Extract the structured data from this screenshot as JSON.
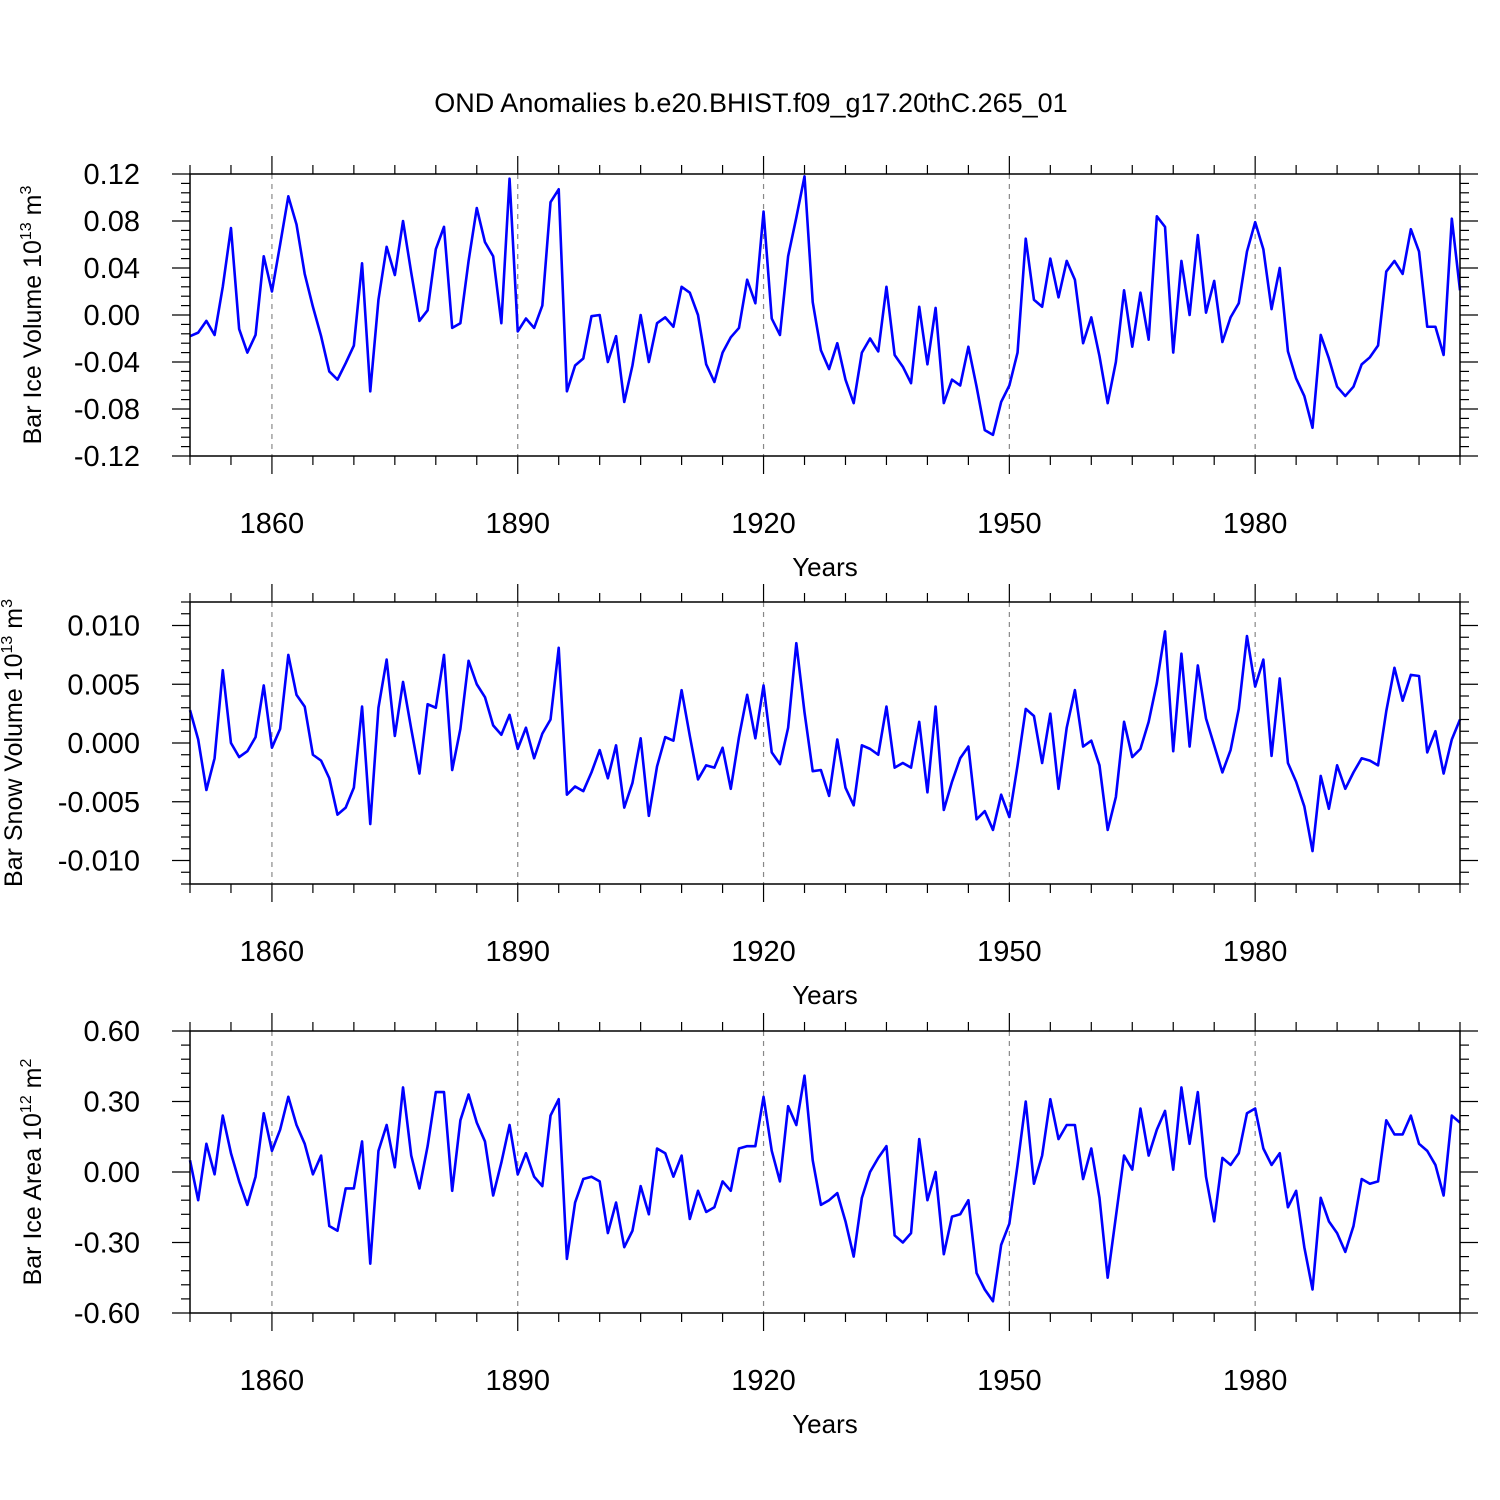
{
  "title": "OND Anomalies b.e20.BHIST.f09_g17.20thC.265_01",
  "series_color": "#0000ff",
  "chart_data": [
    {
      "type": "line",
      "ylabel_main": "Bar Ice Volume 10",
      "ylabel_exp": "13",
      "ylabel_unit": " m",
      "ylabel_unit_exp": "3",
      "xlabel": "Years",
      "xlim": [
        1850,
        2005
      ],
      "ylim": [
        -0.12,
        0.12
      ],
      "yticks": [
        -0.12,
        -0.08,
        -0.04,
        0.0,
        0.04,
        0.08,
        0.12
      ],
      "ytick_labels": [
        "-0.12",
        "-0.08",
        "-0.04",
        "0.00",
        "0.04",
        "0.08",
        "0.12"
      ],
      "xticks": [
        1860,
        1890,
        1920,
        1950,
        1980
      ],
      "xtick_labels": [
        "1860",
        "1890",
        "1920",
        "1950",
        "1980"
      ],
      "x_start": 1850,
      "values": [
        -0.018,
        -0.015,
        -0.005,
        -0.017,
        0.024,
        0.074,
        -0.012,
        -0.032,
        -0.017,
        0.05,
        0.02,
        0.06,
        0.101,
        0.077,
        0.035,
        0.007,
        -0.018,
        -0.048,
        -0.055,
        -0.041,
        -0.026,
        0.044,
        -0.065,
        0.013,
        0.058,
        0.034,
        0.08,
        0.036,
        -0.005,
        0.004,
        0.056,
        0.075,
        -0.011,
        -0.007,
        0.046,
        0.091,
        0.062,
        0.05,
        -0.007,
        0.116,
        -0.014,
        -0.003,
        -0.011,
        0.008,
        0.096,
        0.107,
        -0.065,
        -0.043,
        -0.037,
        -0.001,
        0.0,
        -0.04,
        -0.018,
        -0.074,
        -0.043,
        0.0,
        -0.04,
        -0.007,
        -0.002,
        -0.01,
        0.024,
        0.019,
        0.0,
        -0.042,
        -0.057,
        -0.032,
        -0.019,
        -0.011,
        0.03,
        0.01,
        0.088,
        -0.003,
        -0.017,
        0.05,
        0.083,
        0.118,
        0.011,
        -0.03,
        -0.046,
        -0.024,
        -0.055,
        -0.075,
        -0.032,
        -0.02,
        -0.031,
        0.024,
        -0.034,
        -0.044,
        -0.058,
        0.007,
        -0.042,
        0.006,
        -0.075,
        -0.055,
        -0.06,
        -0.027,
        -0.061,
        -0.098,
        -0.102,
        -0.074,
        -0.06,
        -0.032,
        0.065,
        0.013,
        0.007,
        0.048,
        0.015,
        0.046,
        0.03,
        -0.024,
        -0.002,
        -0.035,
        -0.075,
        -0.04,
        0.021,
        -0.027,
        0.019,
        -0.021,
        0.084,
        0.075,
        -0.032,
        0.046,
        0.0,
        0.068,
        0.002,
        0.029,
        -0.023,
        -0.002,
        0.01,
        0.054,
        0.079,
        0.056,
        0.005,
        0.04,
        -0.031,
        -0.054,
        -0.069,
        -0.096,
        -0.017,
        -0.037,
        -0.061,
        -0.069,
        -0.061,
        -0.042,
        -0.036,
        -0.026,
        0.037,
        0.046,
        0.035,
        0.073,
        0.054,
        -0.01,
        -0.01,
        -0.034,
        0.082,
        0.021
      ]
    },
    {
      "type": "line",
      "ylabel_main": "Bar Snow Volume 10",
      "ylabel_exp": "13",
      "ylabel_unit": " m",
      "ylabel_unit_exp": "3",
      "xlabel": "Years",
      "xlim": [
        1850,
        2005
      ],
      "ylim": [
        -0.012,
        0.012
      ],
      "yticks": [
        -0.01,
        -0.005,
        0.0,
        0.005,
        0.01
      ],
      "ytick_labels": [
        "-0.010",
        "-0.005",
        "0.000",
        "0.005",
        "0.010"
      ],
      "xticks": [
        1860,
        1890,
        1920,
        1950,
        1980
      ],
      "xtick_labels": [
        "1860",
        "1890",
        "1920",
        "1950",
        "1980"
      ],
      "x_start": 1850,
      "values": [
        0.0028,
        0.0003,
        -0.004,
        -0.0013,
        0.0062,
        0.0,
        -0.0012,
        -0.0007,
        0.0005,
        0.0049,
        -0.0004,
        0.0012,
        0.0075,
        0.0041,
        0.0031,
        -0.001,
        -0.0015,
        -0.003,
        -0.0061,
        -0.0055,
        -0.0038,
        0.0031,
        -0.0069,
        0.003,
        0.0071,
        0.0006,
        0.0052,
        0.0012,
        -0.0026,
        0.0033,
        0.003,
        0.0075,
        -0.0023,
        0.0012,
        0.007,
        0.005,
        0.0039,
        0.0015,
        0.0007,
        0.0024,
        -0.0005,
        0.0013,
        -0.0013,
        0.0008,
        0.002,
        0.0081,
        -0.0044,
        -0.0037,
        -0.0041,
        -0.0025,
        -0.0006,
        -0.003,
        -0.0002,
        -0.0055,
        -0.0034,
        0.0004,
        -0.0062,
        -0.002,
        0.0005,
        0.0002,
        0.0045,
        0.0006,
        -0.0031,
        -0.0019,
        -0.0021,
        -0.0004,
        -0.0039,
        0.0005,
        0.0041,
        0.0004,
        0.0049,
        -0.0008,
        -0.0018,
        0.0013,
        0.0085,
        0.0026,
        -0.0024,
        -0.0023,
        -0.0045,
        0.0003,
        -0.0038,
        -0.0053,
        -0.0002,
        -0.0005,
        -0.001,
        0.0031,
        -0.0021,
        -0.0017,
        -0.0021,
        0.0018,
        -0.0042,
        0.0031,
        -0.0057,
        -0.0033,
        -0.0013,
        -0.0003,
        -0.0065,
        -0.0058,
        -0.0074,
        -0.0044,
        -0.0063,
        -0.0019,
        0.0029,
        0.0023,
        -0.0017,
        0.0025,
        -0.0039,
        0.0013,
        0.0045,
        -0.0003,
        0.0002,
        -0.0019,
        -0.0074,
        -0.0046,
        0.0018,
        -0.0012,
        -0.0005,
        0.0018,
        0.0051,
        0.0095,
        -0.0007,
        0.0076,
        -0.0003,
        0.0066,
        0.0021,
        -0.0002,
        -0.0025,
        -0.0006,
        0.0029,
        0.0091,
        0.0048,
        0.0071,
        -0.0011,
        0.0055,
        -0.0017,
        -0.0033,
        -0.0054,
        -0.0092,
        -0.0028,
        -0.0056,
        -0.0019,
        -0.0039,
        -0.0025,
        -0.0013,
        -0.0015,
        -0.0019,
        0.0027,
        0.0064,
        0.0036,
        0.0058,
        0.0057,
        -0.0008,
        0.001,
        -0.0026,
        0.0003,
        0.002
      ]
    },
    {
      "type": "line",
      "ylabel_main": "Bar Ice Area 10",
      "ylabel_exp": "12",
      "ylabel_unit": " m",
      "ylabel_unit_exp": "2",
      "xlabel": "Years",
      "xlim": [
        1850,
        2005
      ],
      "ylim": [
        -0.6,
        0.6
      ],
      "yticks": [
        -0.6,
        -0.3,
        0.0,
        0.3,
        0.6
      ],
      "ytick_labels": [
        "-0.60",
        "-0.30",
        "0.00",
        "0.30",
        "0.60"
      ],
      "xticks": [
        1860,
        1890,
        1920,
        1950,
        1980
      ],
      "xtick_labels": [
        "1860",
        "1890",
        "1920",
        "1950",
        "1980"
      ],
      "x_start": 1850,
      "values": [
        0.05,
        -0.12,
        0.12,
        -0.01,
        0.24,
        0.08,
        -0.04,
        -0.14,
        -0.02,
        0.25,
        0.09,
        0.18,
        0.32,
        0.2,
        0.12,
        -0.01,
        0.07,
        -0.23,
        -0.25,
        -0.07,
        -0.07,
        0.13,
        -0.39,
        0.09,
        0.2,
        0.02,
        0.36,
        0.07,
        -0.07,
        0.11,
        0.34,
        0.34,
        -0.08,
        0.22,
        0.33,
        0.21,
        0.13,
        -0.1,
        0.04,
        0.2,
        -0.01,
        0.08,
        -0.02,
        -0.06,
        0.24,
        0.31,
        -0.37,
        -0.13,
        -0.03,
        -0.02,
        -0.04,
        -0.26,
        -0.13,
        -0.32,
        -0.25,
        -0.06,
        -0.18,
        0.1,
        0.08,
        -0.02,
        0.07,
        -0.2,
        -0.08,
        -0.17,
        -0.15,
        -0.04,
        -0.08,
        0.1,
        0.11,
        0.11,
        0.32,
        0.09,
        -0.04,
        0.28,
        0.2,
        0.41,
        0.05,
        -0.14,
        -0.12,
        -0.09,
        -0.21,
        -0.36,
        -0.11,
        0.0,
        0.06,
        0.11,
        -0.27,
        -0.3,
        -0.26,
        0.14,
        -0.12,
        0.0,
        -0.35,
        -0.19,
        -0.18,
        -0.12,
        -0.43,
        -0.5,
        -0.55,
        -0.31,
        -0.22,
        0.03,
        0.3,
        -0.05,
        0.07,
        0.31,
        0.14,
        0.2,
        0.2,
        -0.03,
        0.1,
        -0.11,
        -0.45,
        -0.19,
        0.07,
        0.01,
        0.27,
        0.07,
        0.18,
        0.26,
        0.01,
        0.36,
        0.12,
        0.34,
        -0.02,
        -0.21,
        0.06,
        0.03,
        0.08,
        0.25,
        0.27,
        0.1,
        0.03,
        0.08,
        -0.15,
        -0.08,
        -0.32,
        -0.5,
        -0.11,
        -0.21,
        -0.26,
        -0.34,
        -0.23,
        -0.03,
        -0.05,
        -0.04,
        0.22,
        0.16,
        0.16,
        0.24,
        0.12,
        0.09,
        0.03,
        -0.1,
        0.24,
        0.21
      ]
    }
  ]
}
